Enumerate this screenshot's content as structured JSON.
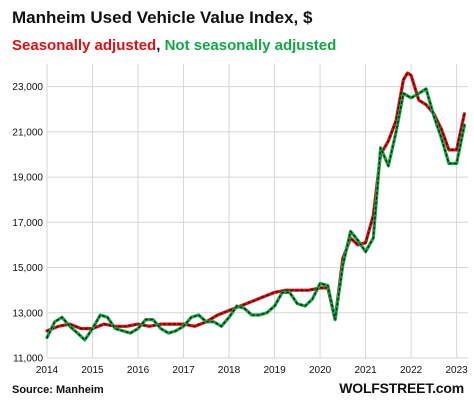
{
  "chart_data": {
    "type": "line",
    "title": "Manheim Used Vehicle Value Index, $",
    "legend": [
      {
        "label": "Seasonally adjusted",
        "color": "#dd1111"
      },
      {
        "label": "Not seasonally adjusted",
        "color": "#11a844"
      }
    ],
    "legend_separator": ", ",
    "x_ticks": [
      "2014",
      "2015",
      "2016",
      "2017",
      "2018",
      "2019",
      "2020",
      "2021",
      "2022",
      "2023"
    ],
    "y_ticks": [
      "11,000",
      "13,000",
      "15,000",
      "17,000",
      "19,000",
      "21,000",
      "23,000"
    ],
    "xlim": [
      2014.0,
      2023.25
    ],
    "ylim": [
      11000,
      24000
    ],
    "grid": true,
    "source": "Source: Manheim",
    "brand": "WOLFSTREET.com",
    "series": [
      {
        "name": "Seasonally adjusted",
        "color": "#dd1111",
        "x": [
          2014.0,
          2014.25,
          2014.5,
          2014.75,
          2015.0,
          2015.25,
          2015.5,
          2015.75,
          2016.0,
          2016.25,
          2016.5,
          2016.75,
          2017.0,
          2017.25,
          2017.5,
          2017.75,
          2018.0,
          2018.25,
          2018.5,
          2018.75,
          2019.0,
          2019.25,
          2019.5,
          2019.75,
          2020.0,
          2020.17,
          2020.33,
          2020.5,
          2020.67,
          2020.83,
          2021.0,
          2021.17,
          2021.33,
          2021.5,
          2021.67,
          2021.83,
          2021.92,
          2022.0,
          2022.17,
          2022.33,
          2022.5,
          2022.67,
          2022.83,
          2023.0,
          2023.17
        ],
        "y": [
          12200,
          12400,
          12500,
          12300,
          12300,
          12500,
          12400,
          12400,
          12500,
          12400,
          12500,
          12500,
          12500,
          12400,
          12600,
          12900,
          13100,
          13300,
          13500,
          13700,
          13900,
          14000,
          14000,
          14000,
          14100,
          14100,
          12700,
          15400,
          16300,
          16000,
          16100,
          17300,
          20000,
          20600,
          21500,
          23300,
          23600,
          23500,
          22400,
          22200,
          21800,
          21100,
          20200,
          20200,
          21800
        ]
      },
      {
        "name": "Not seasonally adjusted",
        "color": "#11a844",
        "x": [
          2014.0,
          2014.17,
          2014.33,
          2014.5,
          2014.67,
          2014.83,
          2015.0,
          2015.17,
          2015.33,
          2015.5,
          2015.67,
          2015.83,
          2016.0,
          2016.17,
          2016.33,
          2016.5,
          2016.67,
          2016.83,
          2017.0,
          2017.17,
          2017.33,
          2017.5,
          2017.67,
          2017.83,
          2018.0,
          2018.17,
          2018.33,
          2018.5,
          2018.67,
          2018.83,
          2019.0,
          2019.17,
          2019.33,
          2019.5,
          2019.67,
          2019.83,
          2020.0,
          2020.17,
          2020.33,
          2020.5,
          2020.67,
          2020.83,
          2021.0,
          2021.17,
          2021.33,
          2021.5,
          2021.67,
          2021.83,
          2022.0,
          2022.17,
          2022.33,
          2022.5,
          2022.67,
          2022.83,
          2023.0,
          2023.17
        ],
        "y": [
          11900,
          12600,
          12800,
          12400,
          12100,
          11800,
          12300,
          12900,
          12800,
          12300,
          12200,
          12100,
          12300,
          12700,
          12700,
          12300,
          12100,
          12200,
          12400,
          12800,
          12900,
          12600,
          12600,
          12400,
          12800,
          13300,
          13200,
          12900,
          12900,
          13000,
          13300,
          13900,
          13900,
          13400,
          13300,
          13600,
          14300,
          14200,
          12700,
          15100,
          16600,
          16200,
          15700,
          16300,
          20300,
          19500,
          21000,
          22700,
          22500,
          22700,
          22900,
          21700,
          20700,
          19600,
          19600,
          21300
        ]
      }
    ]
  }
}
